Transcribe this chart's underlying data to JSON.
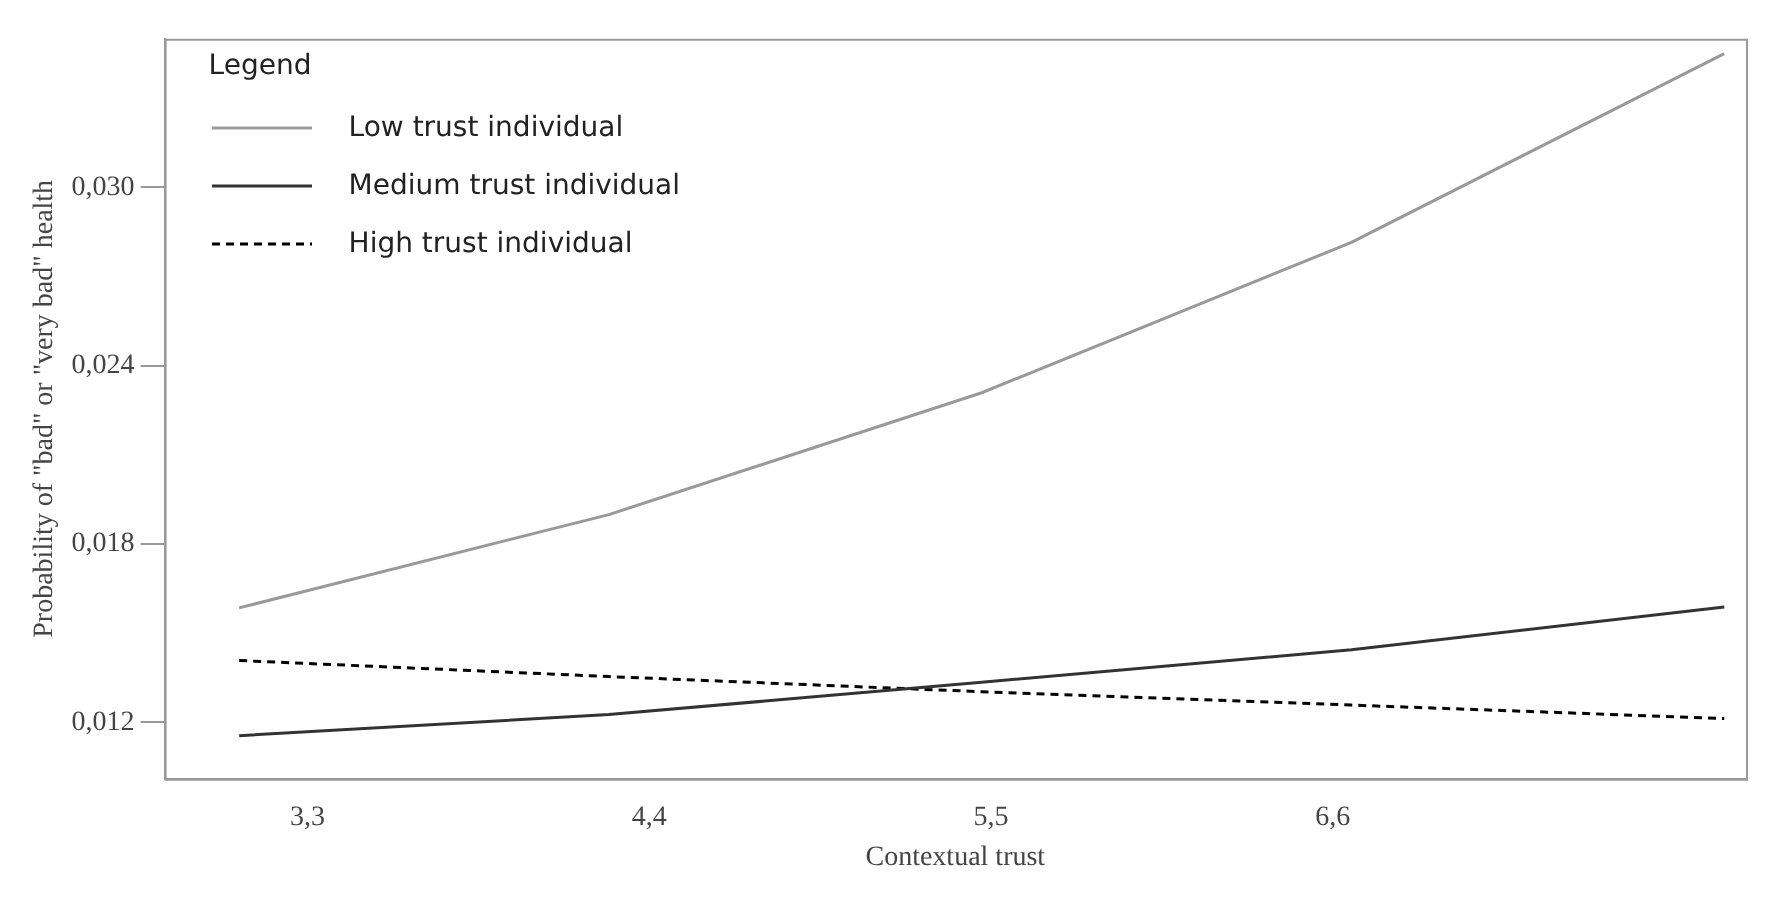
{
  "chart_data": {
    "type": "line",
    "xlabel": "Contextual trust",
    "ylabel": "Probability of \"bad\" or \"very bad\" health",
    "legend_title": "Legend",
    "legend": "top left",
    "grid": false,
    "marker": "none",
    "x": [
      3.08,
      4.27,
      5.47,
      6.66,
      7.86
    ],
    "xlim": [
      2.84,
      7.93
    ],
    "ylim": [
      0.0101,
      0.035
    ],
    "xticks": [
      {
        "value": 3.3,
        "label": "3,3"
      },
      {
        "value": 4.4,
        "label": "4,4"
      },
      {
        "value": 5.5,
        "label": "5,5"
      },
      {
        "value": 6.6,
        "label": "6,6"
      }
    ],
    "yticks": [
      {
        "value": 0.012,
        "label": "0,012"
      },
      {
        "value": 0.018,
        "label": "0,018"
      },
      {
        "value": 0.024,
        "label": "0,024"
      },
      {
        "value": 0.03,
        "label": "0,030"
      }
    ],
    "series": [
      {
        "name": "Low trust individual",
        "color": "#999999",
        "line_style": "solid",
        "values": [
          0.01585,
          0.01899,
          0.02309,
          0.02815,
          0.0345
        ]
      },
      {
        "name": "Medium trust individual",
        "color": "#333333",
        "line_style": "solid",
        "values": [
          0.01155,
          0.01226,
          0.01335,
          0.01444,
          0.01588
        ]
      },
      {
        "name": "High trust individual",
        "color": "#000000",
        "line_style": "dashed",
        "values": [
          0.01408,
          0.01354,
          0.01303,
          0.01258,
          0.01213
        ]
      }
    ]
  }
}
